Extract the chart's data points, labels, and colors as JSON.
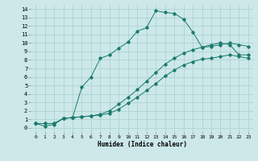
{
  "xlabel": "Humidex (Indice chaleur)",
  "background_color": "#cce8e8",
  "grid_color": "#aacfcf",
  "line_color": "#1a7a6e",
  "xlim": [
    -0.5,
    23.5
  ],
  "ylim": [
    -0.5,
    14.5
  ],
  "xticks": [
    0,
    1,
    2,
    3,
    4,
    5,
    6,
    7,
    8,
    9,
    10,
    11,
    12,
    13,
    14,
    15,
    16,
    17,
    18,
    19,
    20,
    21,
    22,
    23
  ],
  "yticks": [
    0,
    1,
    2,
    3,
    4,
    5,
    6,
    7,
    8,
    9,
    10,
    11,
    12,
    13,
    14
  ],
  "line1_x": [
    0,
    1,
    2,
    3,
    4,
    5,
    6,
    7,
    8,
    9,
    10,
    11,
    12,
    13,
    14,
    15,
    16,
    17,
    18,
    19,
    20,
    21,
    22,
    23
  ],
  "line1_y": [
    0.5,
    0.2,
    0.4,
    1.1,
    1.2,
    4.8,
    6.0,
    8.2,
    8.6,
    9.4,
    10.1,
    11.4,
    11.8,
    13.8,
    13.6,
    13.5,
    12.8,
    11.3,
    9.5,
    9.8,
    10.0,
    9.8,
    8.6,
    8.6
  ],
  "line2_x": [
    0,
    1,
    2,
    3,
    4,
    5,
    6,
    7,
    8,
    9,
    10,
    11,
    12,
    13,
    14,
    15,
    16,
    17,
    18,
    19,
    20,
    21,
    22,
    23
  ],
  "line2_y": [
    0.5,
    0.5,
    0.5,
    1.1,
    1.2,
    1.3,
    1.4,
    1.6,
    2.0,
    2.8,
    3.6,
    4.5,
    5.5,
    6.5,
    7.5,
    8.2,
    8.8,
    9.2,
    9.5,
    9.6,
    9.8,
    10.0,
    9.8,
    9.6
  ],
  "line3_x": [
    0,
    1,
    2,
    3,
    4,
    5,
    6,
    7,
    8,
    9,
    10,
    11,
    12,
    13,
    14,
    15,
    16,
    17,
    18,
    19,
    20,
    21,
    22,
    23
  ],
  "line3_y": [
    0.5,
    0.5,
    0.5,
    1.1,
    1.2,
    1.3,
    1.4,
    1.5,
    1.7,
    2.2,
    2.9,
    3.6,
    4.4,
    5.2,
    6.1,
    6.8,
    7.4,
    7.8,
    8.1,
    8.2,
    8.4,
    8.6,
    8.4,
    8.2
  ]
}
